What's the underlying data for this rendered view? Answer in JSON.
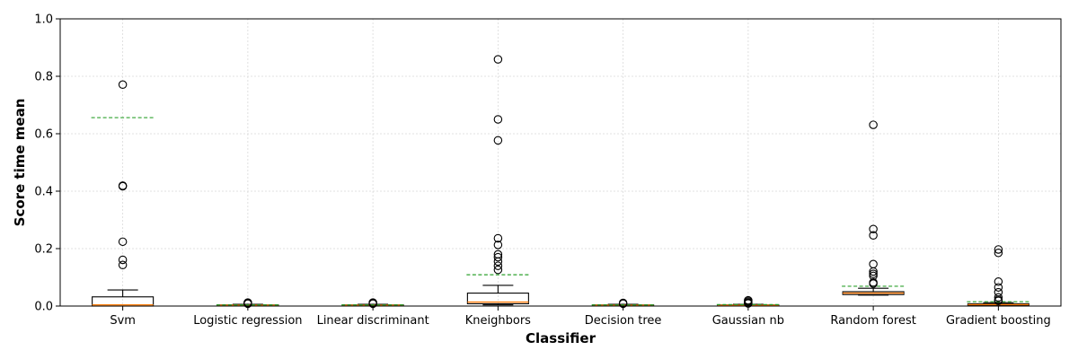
{
  "chart_data": {
    "type": "box",
    "title": "",
    "xlabel": "Classifier",
    "ylabel": "Score time mean",
    "ylim": [
      0,
      1
    ],
    "yticks": [
      0.0,
      0.2,
      0.4,
      0.6,
      0.8,
      1.0
    ],
    "ytick_labels": [
      "0.0",
      "0.2",
      "0.4",
      "0.6",
      "0.8",
      "1.0"
    ],
    "grid": true,
    "categories": [
      "Svm",
      "Logistic regression",
      "Linear discriminant",
      "Kneighbors",
      "Decision tree",
      "Gaussian nb",
      "Random forest",
      "Gradient boosting"
    ],
    "boxes": [
      {
        "whisker_low": 0.0,
        "q1": 0.0,
        "median": 0.004,
        "q3": 0.032,
        "whisker_high": 0.056,
        "mean": 0.656,
        "outliers": [
          0.771,
          0.419,
          0.417,
          0.224,
          0.161,
          0.143
        ]
      },
      {
        "whisker_low": 0.001,
        "q1": 0.002,
        "median": 0.003,
        "q3": 0.004,
        "whisker_high": 0.006,
        "mean": 0.004,
        "outliers": [
          0.008,
          0.01,
          0.012
        ]
      },
      {
        "whisker_low": 0.001,
        "q1": 0.002,
        "median": 0.003,
        "q3": 0.004,
        "whisker_high": 0.006,
        "mean": 0.004,
        "outliers": [
          0.008,
          0.01,
          0.012
        ]
      },
      {
        "whisker_low": 0.004,
        "q1": 0.008,
        "median": 0.014,
        "q3": 0.045,
        "whisker_high": 0.072,
        "mean": 0.109,
        "outliers": [
          0.859,
          0.65,
          0.577,
          0.236,
          0.213,
          0.18,
          0.17,
          0.155,
          0.14,
          0.126
        ]
      },
      {
        "whisker_low": 0.001,
        "q1": 0.002,
        "median": 0.003,
        "q3": 0.004,
        "whisker_high": 0.006,
        "mean": 0.004,
        "outliers": [
          0.008,
          0.011
        ]
      },
      {
        "whisker_low": 0.001,
        "q1": 0.002,
        "median": 0.003,
        "q3": 0.004,
        "whisker_high": 0.006,
        "mean": 0.005,
        "outliers": [
          0.009,
          0.012,
          0.016,
          0.02
        ]
      },
      {
        "whisker_low": 0.038,
        "q1": 0.04,
        "median": 0.045,
        "q3": 0.05,
        "whisker_high": 0.062,
        "mean": 0.069,
        "outliers": [
          0.631,
          0.268,
          0.246,
          0.146,
          0.12,
          0.112,
          0.105,
          0.082,
          0.078
        ]
      },
      {
        "whisker_low": 0.001,
        "q1": 0.003,
        "median": 0.005,
        "q3": 0.008,
        "whisker_high": 0.012,
        "mean": 0.015,
        "outliers": [
          0.197,
          0.185,
          0.085,
          0.065,
          0.048,
          0.03,
          0.022,
          0.018
        ]
      }
    ],
    "colors": {
      "median": "#ff7f0e",
      "mean": "#2ca02c",
      "box": "#000000",
      "grid": "#d9d9d9"
    }
  }
}
